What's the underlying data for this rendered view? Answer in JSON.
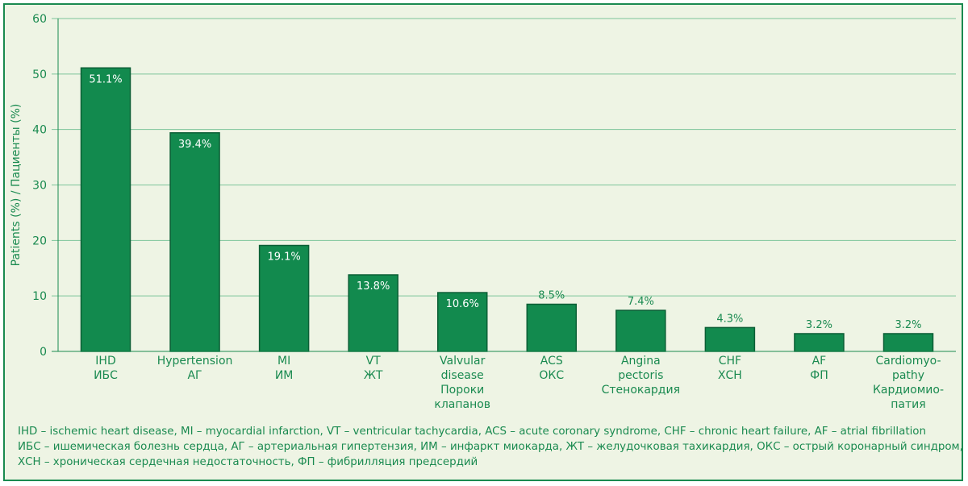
{
  "chart_data": {
    "type": "bar",
    "ylabel": "Patients (%) / Пациенты (%)",
    "ylim": [
      0,
      60
    ],
    "yticks": [
      0,
      10,
      20,
      30,
      40,
      50,
      60
    ],
    "grid": true,
    "categories": [
      [
        "IHD",
        "ИБС"
      ],
      [
        "Hypertension",
        "АГ"
      ],
      [
        "MI",
        "ИМ"
      ],
      [
        "VT",
        "ЖТ"
      ],
      [
        "Valvular",
        "disease",
        "Пороки",
        "клапанов"
      ],
      [
        "ACS",
        "ОКС"
      ],
      [
        "Angina",
        "pectoris",
        "Стенокардия"
      ],
      [
        "CHF",
        "ХСН"
      ],
      [
        "AF",
        "ФП"
      ],
      [
        "Cardiomyo-",
        "pathy",
        "Кардиомио-",
        "патия"
      ]
    ],
    "values": [
      51.1,
      39.4,
      19.1,
      13.8,
      10.6,
      8.5,
      7.4,
      4.3,
      3.2,
      3.2
    ],
    "data_labels": [
      "51.1%",
      "39.4%",
      "19.1%",
      "13.8%",
      "10.6%",
      "8.5%",
      "7.4%",
      "4.3%",
      "3.2%",
      "3.2%"
    ],
    "colors": {
      "bar": "#128a4e",
      "text": "#1a8a50",
      "background": "#eef4e4",
      "grid": "#7cc49a"
    }
  },
  "footnote": [
    "IHD – ischemic heart disease, MI – myocardial infarction, VT – ventricular tachycardia, ACS – acute coronary syndrome, CHF – chronic heart failure, AF – atrial fibrillation",
    "ИБС – ишемическая болезнь сердца, АГ – артериальная гипертензия, ИМ – инфаркт миокарда, ЖТ – желудочковая тахикардия, ОКС – острый коронарный синдром,",
    "ХСН – хроническая сердечная недостаточность, ФП – фибрилляция предсердий"
  ]
}
